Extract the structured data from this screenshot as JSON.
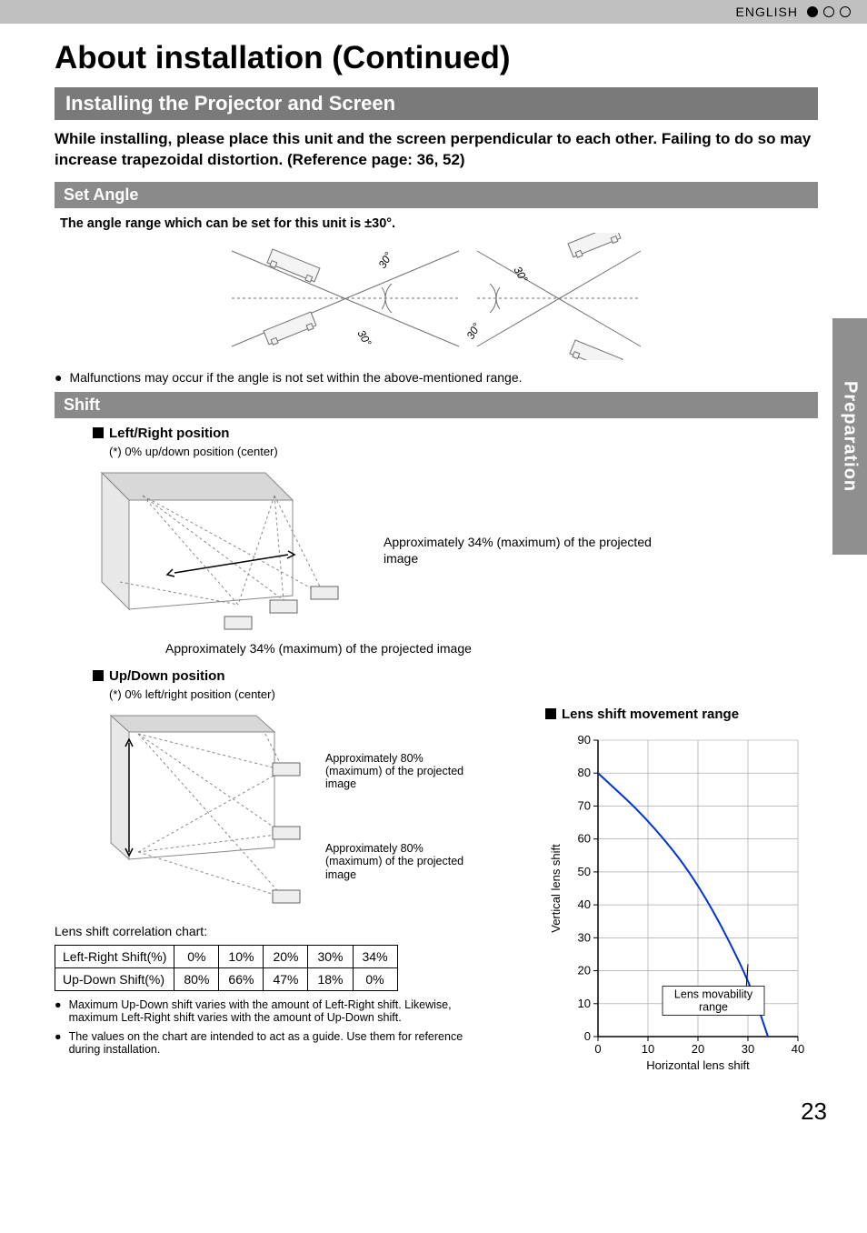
{
  "header": {
    "language_label": "ENGLISH",
    "dot_colors": {
      "filled": "#000000",
      "empty_border": "#000000"
    }
  },
  "side_tab": "Preparation",
  "page_number": "23",
  "title": "About installation (Continued)",
  "section1": {
    "heading": "Installing the Projector and Screen",
    "lead": "While installing, please place this unit and the screen perpendicular to each other. Failing to do so may increase trapezoidal distortion. (Reference page: 36, 52)"
  },
  "set_angle": {
    "heading": "Set Angle",
    "body": "The angle range which can be set for this unit is ±30°.",
    "angle_label": "30°",
    "note": "Malfunctions may occur if the angle is not set within the above-mentioned range.",
    "diagram": {
      "stroke": "#707070",
      "angle_deg": 25
    }
  },
  "shift": {
    "heading": "Shift",
    "left_right": {
      "title": "Left/Right position",
      "subnote": "(*) 0% up/down position (center)",
      "caption_right": "Approximately 34% (maximum) of the projected image",
      "caption_below": "Approximately 34% (maximum) of the projected image"
    },
    "up_down": {
      "title": "Up/Down position",
      "subnote": "(*) 0% left/right position (center)",
      "caption_upper": "Approximately 80% (maximum) of the projected image",
      "caption_lower": "Approximately 80% (maximum) of the projected image"
    },
    "correlation_label": "Lens shift correlation chart:",
    "table": {
      "row1_label": "Left-Right Shift(%)",
      "row2_label": "Up-Down Shift(%)",
      "cols": [
        "0%",
        "10%",
        "20%",
        "30%",
        "34%"
      ],
      "row2": [
        "80%",
        "66%",
        "47%",
        "18%",
        "0%"
      ]
    },
    "notes": [
      "Maximum Up-Down shift varies with the amount of Left-Right shift. Likewise, maximum Left-Right shift varies with the amount of Up-Down shift.",
      "The values on the chart are intended to act as a guide. Use them for reference during installation."
    ],
    "movement_range": {
      "title": "Lens shift movement range",
      "ylabel": "Vertical lens shift",
      "xlabel": "Horizontal lens shift",
      "callout": "Lens movability range",
      "y_ticks": [
        0,
        10,
        20,
        30,
        40,
        50,
        60,
        70,
        80,
        90
      ],
      "x_ticks": [
        0,
        10,
        20,
        30,
        40
      ],
      "curve_points": [
        [
          0,
          80
        ],
        [
          10,
          66
        ],
        [
          20,
          47
        ],
        [
          30,
          18
        ],
        [
          34,
          0
        ]
      ],
      "curve_color": "#0033dd",
      "grid_color": "#999999",
      "axis_color": "#000000",
      "bg": "#ffffff",
      "font_size_ticks": 13,
      "font_size_labels": 13
    }
  }
}
